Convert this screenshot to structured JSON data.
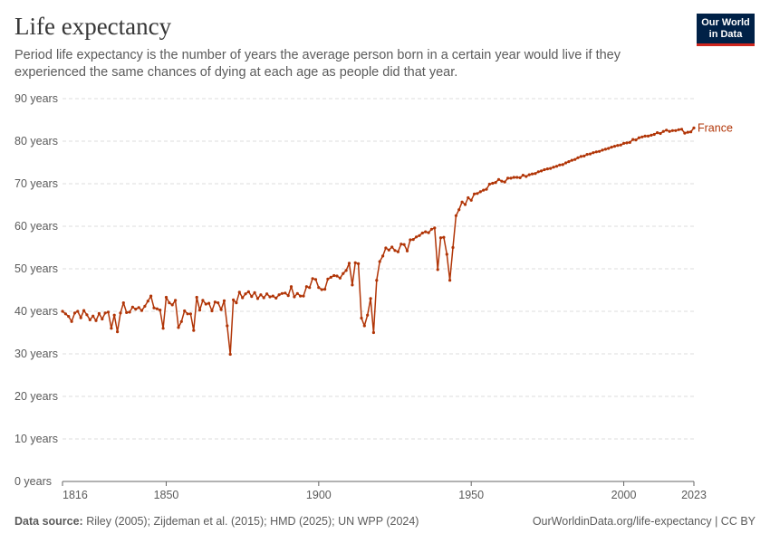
{
  "header": {
    "title": "Life expectancy",
    "subtitle": "Period life expectancy is the number of years the average person born in a certain year would live if they experienced the same chances of dying at each age as people did that year.",
    "logo_line1": "Our World",
    "logo_line2": "in Data"
  },
  "footer": {
    "source_label": "Data source:",
    "source_text": " Riley (2005); Zijdeman et al. (2015); HMD (2025); UN WPP (2024)",
    "link": "OurWorldinData.org/life-expectancy | CC BY"
  },
  "colors": {
    "series": "#b13507",
    "grid": "#dddddd",
    "axis": "#666666",
    "text": "#5b5b5b"
  },
  "chart_data": {
    "type": "line",
    "xlim": [
      1816,
      2023
    ],
    "ylim": [
      0,
      90
    ],
    "x_ticks": [
      1816,
      1850,
      1900,
      1950,
      2000,
      2023
    ],
    "y_ticks": [
      {
        "value": 0,
        "label": "0 years"
      },
      {
        "value": 10,
        "label": "10 years"
      },
      {
        "value": 20,
        "label": "20 years"
      },
      {
        "value": 30,
        "label": "30 years"
      },
      {
        "value": 40,
        "label": "40 years"
      },
      {
        "value": 50,
        "label": "50 years"
      },
      {
        "value": 60,
        "label": "60 years"
      },
      {
        "value": 70,
        "label": "70 years"
      },
      {
        "value": 80,
        "label": "80 years"
      },
      {
        "value": 90,
        "label": "90 years"
      }
    ],
    "grid": "horizontal dashed",
    "series": [
      {
        "name": "France",
        "x": [
          1816,
          1817,
          1818,
          1819,
          1820,
          1821,
          1822,
          1823,
          1824,
          1825,
          1826,
          1827,
          1828,
          1829,
          1830,
          1831,
          1832,
          1833,
          1834,
          1835,
          1836,
          1837,
          1838,
          1839,
          1840,
          1841,
          1842,
          1843,
          1844,
          1845,
          1846,
          1847,
          1848,
          1849,
          1850,
          1851,
          1852,
          1853,
          1854,
          1855,
          1856,
          1857,
          1858,
          1859,
          1860,
          1861,
          1862,
          1863,
          1864,
          1865,
          1866,
          1867,
          1868,
          1869,
          1870,
          1871,
          1872,
          1873,
          1874,
          1875,
          1876,
          1877,
          1878,
          1879,
          1880,
          1881,
          1882,
          1883,
          1884,
          1885,
          1886,
          1887,
          1888,
          1889,
          1890,
          1891,
          1892,
          1893,
          1894,
          1895,
          1896,
          1897,
          1898,
          1899,
          1900,
          1901,
          1902,
          1903,
          1904,
          1905,
          1906,
          1907,
          1908,
          1909,
          1910,
          1911,
          1912,
          1913,
          1914,
          1915,
          1916,
          1917,
          1918,
          1919,
          1920,
          1921,
          1922,
          1923,
          1924,
          1925,
          1926,
          1927,
          1928,
          1929,
          1930,
          1931,
          1932,
          1933,
          1934,
          1935,
          1936,
          1937,
          1938,
          1939,
          1940,
          1941,
          1942,
          1943,
          1944,
          1945,
          1946,
          1947,
          1948,
          1949,
          1950,
          1951,
          1952,
          1953,
          1954,
          1955,
          1956,
          1957,
          1958,
          1959,
          1960,
          1961,
          1962,
          1963,
          1964,
          1965,
          1966,
          1967,
          1968,
          1969,
          1970,
          1971,
          1972,
          1973,
          1974,
          1975,
          1976,
          1977,
          1978,
          1979,
          1980,
          1981,
          1982,
          1983,
          1984,
          1985,
          1986,
          1987,
          1988,
          1989,
          1990,
          1991,
          1992,
          1993,
          1994,
          1995,
          1996,
          1997,
          1998,
          1999,
          2000,
          2001,
          2002,
          2003,
          2004,
          2005,
          2006,
          2007,
          2008,
          2009,
          2010,
          2011,
          2012,
          2013,
          2014,
          2015,
          2016,
          2017,
          2018,
          2019,
          2020,
          2021,
          2022,
          2023
        ],
        "y": [
          40.0,
          39.4,
          38.8,
          37.6,
          39.6,
          40.0,
          38.5,
          40.2,
          39.2,
          38.0,
          38.9,
          37.8,
          39.5,
          38.2,
          39.6,
          39.8,
          36.0,
          39.1,
          35.2,
          39.6,
          42.0,
          39.7,
          39.8,
          41.0,
          40.5,
          40.9,
          40.2,
          41.2,
          42.4,
          43.6,
          40.8,
          40.6,
          40.3,
          36.0,
          43.3,
          42.0,
          41.5,
          42.6,
          36.2,
          37.6,
          40.1,
          39.4,
          39.4,
          35.5,
          43.3,
          40.3,
          42.6,
          41.7,
          41.9,
          40.1,
          42.2,
          42.0,
          40.4,
          42.5,
          36.6,
          29.9,
          42.7,
          42.0,
          44.5,
          43.2,
          44.1,
          44.6,
          43.5,
          44.4,
          43.0,
          43.9,
          43.2,
          44.1,
          43.4,
          43.6,
          43.1,
          43.9,
          44.2,
          44.3,
          43.7,
          45.8,
          43.4,
          44.2,
          43.6,
          43.6,
          45.8,
          45.6,
          47.7,
          47.5,
          45.6,
          45.1,
          45.2,
          47.6,
          48.0,
          48.4,
          48.3,
          47.8,
          48.9,
          49.6,
          51.3,
          46.2,
          51.4,
          51.2,
          38.4,
          36.6,
          39.1,
          43.0,
          35.0,
          47.3,
          51.7,
          53.0,
          54.9,
          54.4,
          55.1,
          54.3,
          54.0,
          55.8,
          55.7,
          54.2,
          56.8,
          56.9,
          57.5,
          57.8,
          58.4,
          58.7,
          58.5,
          59.3,
          59.6,
          49.8,
          57.3,
          57.4,
          53.4,
          47.3,
          55.0,
          62.5,
          63.9,
          65.7,
          65.1,
          66.7,
          66.1,
          67.6,
          67.7,
          68.1,
          68.5,
          68.7,
          69.9,
          70.1,
          70.3,
          71.0,
          70.6,
          70.4,
          71.3,
          71.3,
          71.5,
          71.5,
          71.4,
          72.0,
          71.7,
          72.1,
          72.3,
          72.4,
          72.8,
          73.0,
          73.3,
          73.5,
          73.6,
          73.9,
          74.1,
          74.4,
          74.5,
          74.9,
          75.2,
          75.5,
          75.7,
          76.1,
          76.4,
          76.5,
          76.9,
          77.0,
          77.3,
          77.5,
          77.6,
          77.9,
          78.1,
          78.3,
          78.6,
          78.8,
          79.0,
          79.1,
          79.5,
          79.6,
          79.7,
          80.4,
          80.3,
          80.8,
          81.0,
          81.2,
          81.2,
          81.4,
          81.6,
          82.0,
          81.8,
          82.3,
          82.6,
          82.3,
          82.5,
          82.5,
          82.7,
          82.8,
          81.9,
          82.1,
          82.2,
          83.1
        ]
      }
    ]
  }
}
